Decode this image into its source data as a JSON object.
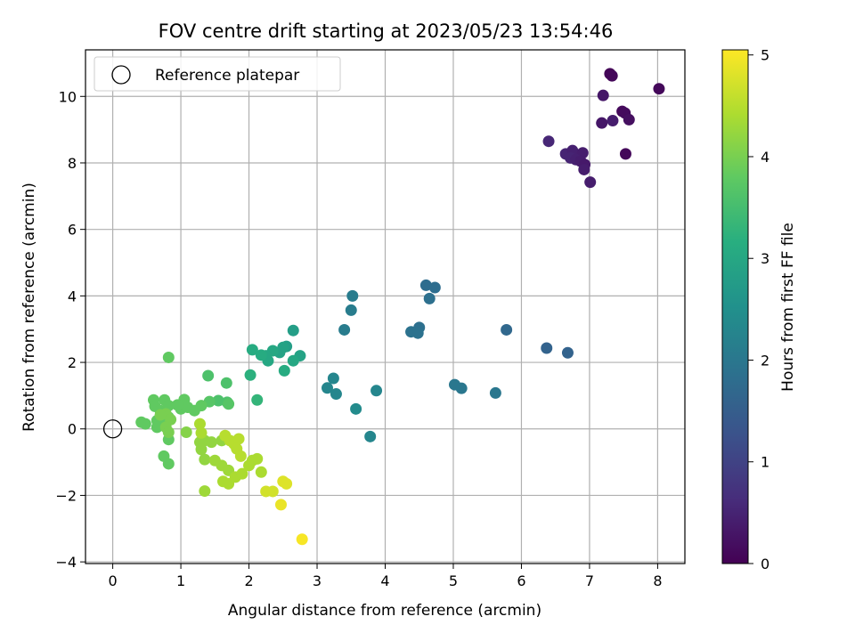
{
  "chart_data": {
    "type": "scatter",
    "title": "FOV centre drift starting at 2023/05/23 13:54:46",
    "xlabel": "Angular distance from reference (arcmin)",
    "ylabel": "Rotation from reference (arcmin)",
    "xlim": [
      -0.4,
      8.4
    ],
    "ylim": [
      -4.05,
      11.4
    ],
    "xticks": [
      0,
      1,
      2,
      3,
      4,
      5,
      6,
      7,
      8
    ],
    "yticks": [
      -4,
      -2,
      0,
      2,
      4,
      6,
      8,
      10
    ],
    "grid": true,
    "legend": {
      "placement": "top-left",
      "entries": [
        "Reference platepar"
      ]
    },
    "colorbar": {
      "label": "Hours from first FF file",
      "colormap": "viridis",
      "range": [
        0,
        5.05
      ],
      "ticks": [
        0,
        1,
        2,
        3,
        4,
        5
      ]
    },
    "reference_point": {
      "x": 0,
      "y": 0,
      "label": "Reference platepar"
    },
    "series": [
      {
        "points": [
          {
            "x": 7.3,
            "y": 10.68,
            "t": 0.05
          },
          {
            "x": 7.33,
            "y": 10.62,
            "t": 0.08
          },
          {
            "x": 8.02,
            "y": 10.23,
            "t": 0.1
          },
          {
            "x": 7.2,
            "y": 10.03,
            "t": 0.3
          },
          {
            "x": 7.48,
            "y": 9.55,
            "t": 0.12
          },
          {
            "x": 7.52,
            "y": 9.5,
            "t": 0.15
          },
          {
            "x": 7.58,
            "y": 9.3,
            "t": 0.2
          },
          {
            "x": 7.34,
            "y": 9.27,
            "t": 0.4
          },
          {
            "x": 7.18,
            "y": 9.2,
            "t": 0.3
          },
          {
            "x": 6.4,
            "y": 8.65,
            "t": 0.55
          },
          {
            "x": 7.53,
            "y": 8.27,
            "t": 0.1
          },
          {
            "x": 6.65,
            "y": 8.27,
            "t": 0.5
          },
          {
            "x": 6.75,
            "y": 8.37,
            "t": 0.45
          },
          {
            "x": 6.9,
            "y": 8.3,
            "t": 0.4
          },
          {
            "x": 6.72,
            "y": 8.15,
            "t": 0.5
          },
          {
            "x": 6.8,
            "y": 8.1,
            "t": 0.45
          },
          {
            "x": 6.87,
            "y": 8.05,
            "t": 0.4
          },
          {
            "x": 6.93,
            "y": 7.95,
            "t": 0.35
          },
          {
            "x": 6.92,
            "y": 7.8,
            "t": 0.4
          },
          {
            "x": 7.01,
            "y": 7.42,
            "t": 0.4
          },
          {
            "x": 6.37,
            "y": 2.43,
            "t": 1.6
          },
          {
            "x": 6.68,
            "y": 2.29,
            "t": 1.6
          },
          {
            "x": 5.78,
            "y": 2.98,
            "t": 1.7
          },
          {
            "x": 4.6,
            "y": 4.32,
            "t": 1.8
          },
          {
            "x": 4.73,
            "y": 4.25,
            "t": 1.8
          },
          {
            "x": 4.65,
            "y": 3.92,
            "t": 1.85
          },
          {
            "x": 4.5,
            "y": 3.05,
            "t": 1.85
          },
          {
            "x": 4.38,
            "y": 2.92,
            "t": 1.9
          },
          {
            "x": 4.48,
            "y": 2.88,
            "t": 1.9
          },
          {
            "x": 5.02,
            "y": 1.33,
            "t": 2.0
          },
          {
            "x": 5.12,
            "y": 1.22,
            "t": 2.0
          },
          {
            "x": 5.62,
            "y": 1.08,
            "t": 2.0
          },
          {
            "x": 3.52,
            "y": 4.0,
            "t": 2.1
          },
          {
            "x": 3.5,
            "y": 3.57,
            "t": 2.1
          },
          {
            "x": 3.4,
            "y": 2.98,
            "t": 2.1
          },
          {
            "x": 3.87,
            "y": 1.15,
            "t": 2.3
          },
          {
            "x": 3.24,
            "y": 1.52,
            "t": 2.3
          },
          {
            "x": 3.15,
            "y": 1.23,
            "t": 2.3
          },
          {
            "x": 3.28,
            "y": 1.05,
            "t": 2.3
          },
          {
            "x": 3.57,
            "y": 0.6,
            "t": 2.4
          },
          {
            "x": 3.78,
            "y": -0.23,
            "t": 2.3
          },
          {
            "x": 2.65,
            "y": 2.96,
            "t": 2.8
          },
          {
            "x": 2.55,
            "y": 2.48,
            "t": 2.8
          },
          {
            "x": 2.5,
            "y": 2.45,
            "t": 2.9
          },
          {
            "x": 2.75,
            "y": 2.2,
            "t": 2.9
          },
          {
            "x": 2.45,
            "y": 2.3,
            "t": 2.9
          },
          {
            "x": 2.35,
            "y": 2.35,
            "t": 3.0
          },
          {
            "x": 2.25,
            "y": 2.2,
            "t": 3.0
          },
          {
            "x": 2.28,
            "y": 2.05,
            "t": 3.0
          },
          {
            "x": 2.65,
            "y": 2.05,
            "t": 3.0
          },
          {
            "x": 2.05,
            "y": 2.38,
            "t": 3.1
          },
          {
            "x": 2.18,
            "y": 2.22,
            "t": 3.1
          },
          {
            "x": 2.52,
            "y": 1.75,
            "t": 3.1
          },
          {
            "x": 2.02,
            "y": 1.62,
            "t": 3.2
          },
          {
            "x": 2.12,
            "y": 0.87,
            "t": 3.3
          },
          {
            "x": 1.4,
            "y": 1.6,
            "t": 3.6
          },
          {
            "x": 1.67,
            "y": 1.38,
            "t": 3.6
          },
          {
            "x": 1.55,
            "y": 0.85,
            "t": 3.6
          },
          {
            "x": 1.68,
            "y": 0.8,
            "t": 3.6
          },
          {
            "x": 1.7,
            "y": 0.75,
            "t": 3.7
          },
          {
            "x": 1.42,
            "y": 0.82,
            "t": 3.7
          },
          {
            "x": 0.82,
            "y": 2.15,
            "t": 3.8
          },
          {
            "x": 0.6,
            "y": 0.87,
            "t": 3.8
          },
          {
            "x": 0.76,
            "y": 0.87,
            "t": 3.8
          },
          {
            "x": 1.05,
            "y": 0.88,
            "t": 3.8
          },
          {
            "x": 0.62,
            "y": 0.68,
            "t": 3.8
          },
          {
            "x": 0.7,
            "y": 0.55,
            "t": 3.8
          },
          {
            "x": 0.82,
            "y": 0.7,
            "t": 3.8
          },
          {
            "x": 1.0,
            "y": 0.6,
            "t": 3.8
          },
          {
            "x": 1.1,
            "y": 0.65,
            "t": 3.8
          },
          {
            "x": 0.95,
            "y": 0.72,
            "t": 3.8
          },
          {
            "x": 1.2,
            "y": 0.55,
            "t": 3.8
          },
          {
            "x": 1.3,
            "y": 0.7,
            "t": 3.8
          },
          {
            "x": 0.42,
            "y": 0.2,
            "t": 3.8
          },
          {
            "x": 0.48,
            "y": 0.15,
            "t": 3.8
          },
          {
            "x": 0.65,
            "y": 0.25,
            "t": 3.8
          },
          {
            "x": 0.72,
            "y": 0.12,
            "t": 3.8
          },
          {
            "x": 0.65,
            "y": 0.05,
            "t": 3.8
          },
          {
            "x": 0.82,
            "y": 0.35,
            "t": 3.8
          },
          {
            "x": 0.82,
            "y": -0.32,
            "t": 3.8
          },
          {
            "x": 0.75,
            "y": -0.82,
            "t": 3.8
          },
          {
            "x": 0.82,
            "y": -1.05,
            "t": 3.8
          },
          {
            "x": 0.78,
            "y": 0.45,
            "t": 4.0
          },
          {
            "x": 0.7,
            "y": 0.42,
            "t": 4.0
          },
          {
            "x": 0.85,
            "y": 0.28,
            "t": 4.0
          },
          {
            "x": 0.78,
            "y": 0.05,
            "t": 4.0
          },
          {
            "x": 0.82,
            "y": -0.1,
            "t": 4.0
          },
          {
            "x": 1.08,
            "y": -0.1,
            "t": 4.1
          },
          {
            "x": 1.35,
            "y": -0.35,
            "t": 4.2
          },
          {
            "x": 1.45,
            "y": -0.4,
            "t": 4.2
          },
          {
            "x": 1.6,
            "y": -0.35,
            "t": 4.2
          },
          {
            "x": 1.28,
            "y": -0.4,
            "t": 4.2
          },
          {
            "x": 1.3,
            "y": -0.62,
            "t": 4.2
          },
          {
            "x": 1.35,
            "y": -0.92,
            "t": 4.2
          },
          {
            "x": 1.5,
            "y": -0.95,
            "t": 4.3
          },
          {
            "x": 1.6,
            "y": -1.1,
            "t": 4.3
          },
          {
            "x": 1.7,
            "y": -1.25,
            "t": 4.3
          },
          {
            "x": 1.35,
            "y": -1.87,
            "t": 4.3
          },
          {
            "x": 1.62,
            "y": -1.58,
            "t": 4.4
          },
          {
            "x": 1.7,
            "y": -1.65,
            "t": 4.4
          },
          {
            "x": 1.8,
            "y": -1.45,
            "t": 4.4
          },
          {
            "x": 1.9,
            "y": -1.35,
            "t": 4.4
          },
          {
            "x": 2.0,
            "y": -1.1,
            "t": 4.4
          },
          {
            "x": 2.05,
            "y": -0.95,
            "t": 4.4
          },
          {
            "x": 2.12,
            "y": -0.9,
            "t": 4.4
          },
          {
            "x": 2.18,
            "y": -1.3,
            "t": 4.4
          },
          {
            "x": 1.28,
            "y": 0.15,
            "t": 4.4
          },
          {
            "x": 1.3,
            "y": -0.12,
            "t": 4.4
          },
          {
            "x": 1.65,
            "y": -0.2,
            "t": 4.5
          },
          {
            "x": 1.72,
            "y": -0.35,
            "t": 4.5
          },
          {
            "x": 1.78,
            "y": -0.45,
            "t": 4.5
          },
          {
            "x": 1.85,
            "y": -0.3,
            "t": 4.5
          },
          {
            "x": 1.82,
            "y": -0.6,
            "t": 4.5
          },
          {
            "x": 1.88,
            "y": -0.82,
            "t": 4.5
          },
          {
            "x": 2.25,
            "y": -1.88,
            "t": 4.7
          },
          {
            "x": 2.35,
            "y": -1.88,
            "t": 4.7
          },
          {
            "x": 2.5,
            "y": -1.58,
            "t": 4.8
          },
          {
            "x": 2.55,
            "y": -1.65,
            "t": 4.8
          },
          {
            "x": 2.47,
            "y": -2.28,
            "t": 4.9
          },
          {
            "x": 2.78,
            "y": -3.32,
            "t": 5.0
          }
        ]
      }
    ]
  }
}
